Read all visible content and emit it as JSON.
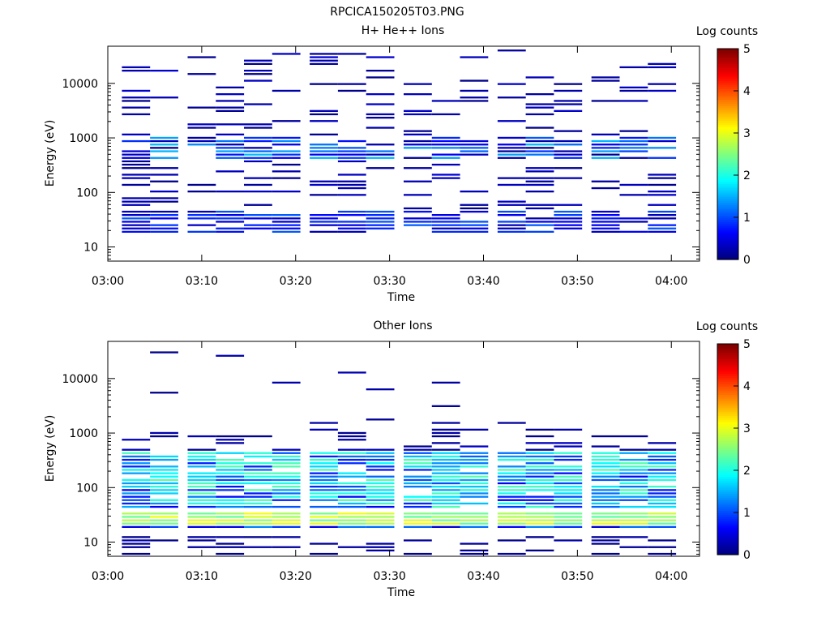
{
  "figure_title": "RPCICA150205T03.PNG",
  "colorbar": {
    "title": "Log counts",
    "ticks": [
      "0",
      "1",
      "2",
      "3",
      "4",
      "5"
    ],
    "range": [
      0,
      5
    ],
    "colormap": "jet"
  },
  "chart_data": [
    {
      "type": "heatmap",
      "title": "H+ He++ Ions",
      "xlabel": "Time",
      "ylabel": "Energy (eV)",
      "y_scale": "log",
      "x_ticks": [
        "03:00",
        "03:10",
        "03:20",
        "03:30",
        "03:40",
        "03:50",
        "04:00"
      ],
      "y_ticks": [
        "10",
        "100",
        "1000",
        "10000"
      ],
      "xlim": [
        "03:00",
        "04:03"
      ],
      "ylim": [
        5.5,
        48000
      ],
      "time_columns": [
        "03:03",
        "03:06",
        "03:10",
        "03:13",
        "03:16",
        "03:19",
        "03:23",
        "03:26",
        "03:29",
        "03:33",
        "03:36",
        "03:39",
        "03:43",
        "03:46",
        "03:49",
        "03:53",
        "03:56",
        "03:59"
      ],
      "description_profile": {
        "low_energy_band_eV": [
          17,
          45
        ],
        "low_energy_log_counts": 0.7,
        "mid_band_eV": [
          380,
          1000
        ],
        "mid_band_log_counts": 1.0,
        "sparse_high_eV": [
          1000,
          40000
        ]
      }
    },
    {
      "type": "heatmap",
      "title": "Other Ions",
      "xlabel": "Time",
      "ylabel": "Energy (eV)",
      "y_scale": "log",
      "x_ticks": [
        "03:00",
        "03:10",
        "03:20",
        "03:30",
        "03:40",
        "03:50",
        "04:00"
      ],
      "y_ticks": [
        "10",
        "100",
        "1000",
        "10000"
      ],
      "xlim": [
        "03:00",
        "04:03"
      ],
      "ylim": [
        5.5,
        48000
      ],
      "time_columns": [
        "03:03",
        "03:06",
        "03:10",
        "03:13",
        "03:16",
        "03:19",
        "03:23",
        "03:26",
        "03:29",
        "03:33",
        "03:36",
        "03:39",
        "03:43",
        "03:46",
        "03:49",
        "03:53",
        "03:56",
        "03:59"
      ],
      "description_profile": {
        "peak_band_eV": [
          21,
          36
        ],
        "peak_log_counts": 2.8,
        "dense_band_eV": [
          40,
          450
        ],
        "dense_log_counts": 1.4,
        "sparse_high_eV": [
          500,
          30000
        ]
      }
    }
  ]
}
